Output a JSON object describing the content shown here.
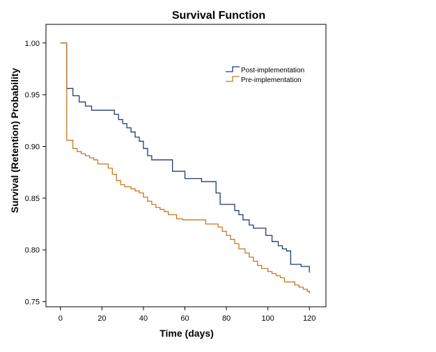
{
  "colors": {
    "post": "#1f3a75",
    "pre": "#c8781e",
    "axis": "#000000"
  },
  "chart_data": {
    "type": "line",
    "step": true,
    "title": "Survival Function",
    "xlabel": "Time (days)",
    "ylabel": "Survival (Retention) Probability",
    "xlim": [
      -7,
      128
    ],
    "ylim": [
      0.745,
      1.018
    ],
    "xticks": [
      0,
      20,
      40,
      60,
      80,
      100,
      120
    ],
    "yticks": [
      0.75,
      0.8,
      0.85,
      0.9,
      0.95,
      1.0
    ],
    "ytick_labels": [
      "0.75",
      "0.80",
      "0.85",
      "0.90",
      "0.95",
      "1.00"
    ],
    "legend_position": "top-right",
    "series": [
      {
        "name": "Post-implementation",
        "color_key": "post",
        "x": [
          0,
          3,
          6,
          9,
          12,
          15,
          26,
          28,
          30,
          32,
          34,
          36,
          38,
          40,
          42,
          44,
          54,
          60,
          68,
          75,
          77,
          84,
          86,
          88,
          91,
          93,
          99,
          102,
          105,
          107,
          109,
          111,
          116,
          120
        ],
        "y": [
          1.0,
          0.956,
          0.949,
          0.943,
          0.939,
          0.935,
          0.931,
          0.926,
          0.922,
          0.918,
          0.914,
          0.909,
          0.905,
          0.898,
          0.891,
          0.887,
          0.876,
          0.869,
          0.866,
          0.855,
          0.844,
          0.838,
          0.834,
          0.829,
          0.824,
          0.821,
          0.814,
          0.808,
          0.804,
          0.801,
          0.799,
          0.786,
          0.784,
          0.778
        ]
      },
      {
        "name": "Pre-implementation",
        "color_key": "pre",
        "x": [
          0,
          3,
          6,
          8,
          10,
          12,
          14,
          16,
          18,
          23,
          25,
          27,
          29,
          31,
          34,
          36,
          38,
          40,
          42,
          44,
          46,
          48,
          50,
          52,
          56,
          59,
          70,
          76,
          78,
          80,
          82,
          84,
          86,
          89,
          91,
          93,
          95,
          97,
          100,
          102,
          104,
          106,
          108,
          113,
          115,
          117,
          119,
          120
        ],
        "y": [
          1.0,
          0.906,
          0.898,
          0.895,
          0.893,
          0.891,
          0.889,
          0.887,
          0.883,
          0.879,
          0.873,
          0.867,
          0.863,
          0.861,
          0.859,
          0.857,
          0.855,
          0.851,
          0.847,
          0.844,
          0.841,
          0.839,
          0.837,
          0.834,
          0.83,
          0.829,
          0.825,
          0.822,
          0.818,
          0.814,
          0.81,
          0.806,
          0.801,
          0.797,
          0.793,
          0.789,
          0.785,
          0.782,
          0.779,
          0.777,
          0.775,
          0.773,
          0.769,
          0.766,
          0.764,
          0.762,
          0.76,
          0.758
        ]
      }
    ]
  }
}
